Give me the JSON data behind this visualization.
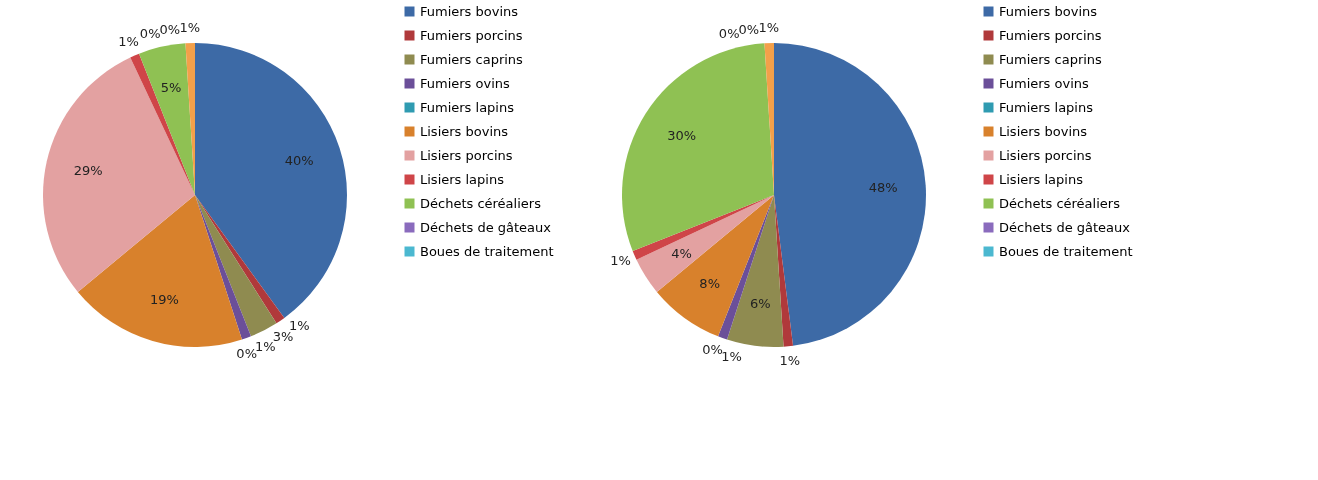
{
  "chart_data": [
    {
      "type": "pie",
      "categories": [
        "Fumiers bovins",
        "Fumiers porcins",
        "Fumiers caprins",
        "Fumiers ovins",
        "Fumiers lapins",
        "Lisiers bovins",
        "Lisiers porcins",
        "Lisiers lapins",
        "Déchets céréaliers",
        "Déchets de gâteaux",
        "Boues de traitement",
        null
      ],
      "values": [
        40,
        1,
        3,
        1,
        0,
        19,
        29,
        1,
        5,
        0,
        0,
        1
      ],
      "value_labels": [
        "40%",
        "1%",
        "3%",
        "1%",
        "0%",
        "19%",
        "29%",
        "1%",
        "5%",
        "0%",
        "0%",
        "1%"
      ],
      "colors": [
        "#3d6aa6",
        "#b0393b",
        "#8f8b50",
        "#6b4f99",
        "#2f9bb1",
        "#d8812c",
        "#e3a1a1",
        "#cf4548",
        "#8fc153",
        "#8a6bbd",
        "#4bb8d0",
        "#f3a04a"
      ],
      "legend": "right"
    },
    {
      "type": "pie",
      "categories": [
        "Fumiers bovins",
        "Fumiers porcins",
        "Fumiers caprins",
        "Fumiers ovins",
        "Fumiers lapins",
        "Lisiers bovins",
        "Lisiers porcins",
        "Lisiers lapins",
        "Déchets céréaliers",
        "Déchets de gâteaux",
        "Boues de traitement",
        null
      ],
      "values": [
        48,
        1,
        6,
        1,
        0,
        8,
        4,
        1,
        30,
        0,
        0,
        1
      ],
      "value_labels": [
        "48%",
        "1%",
        "6%",
        "1%",
        "0%",
        "8%",
        "4%",
        "1%",
        "30%",
        "0%",
        "0%",
        "1%"
      ],
      "colors": [
        "#3d6aa6",
        "#b0393b",
        "#8f8b50",
        "#6b4f99",
        "#2f9bb1",
        "#d8812c",
        "#e3a1a1",
        "#cf4548",
        "#8fc153",
        "#8a6bbd",
        "#4bb8d0",
        "#f3a04a"
      ],
      "legend": "right"
    }
  ]
}
